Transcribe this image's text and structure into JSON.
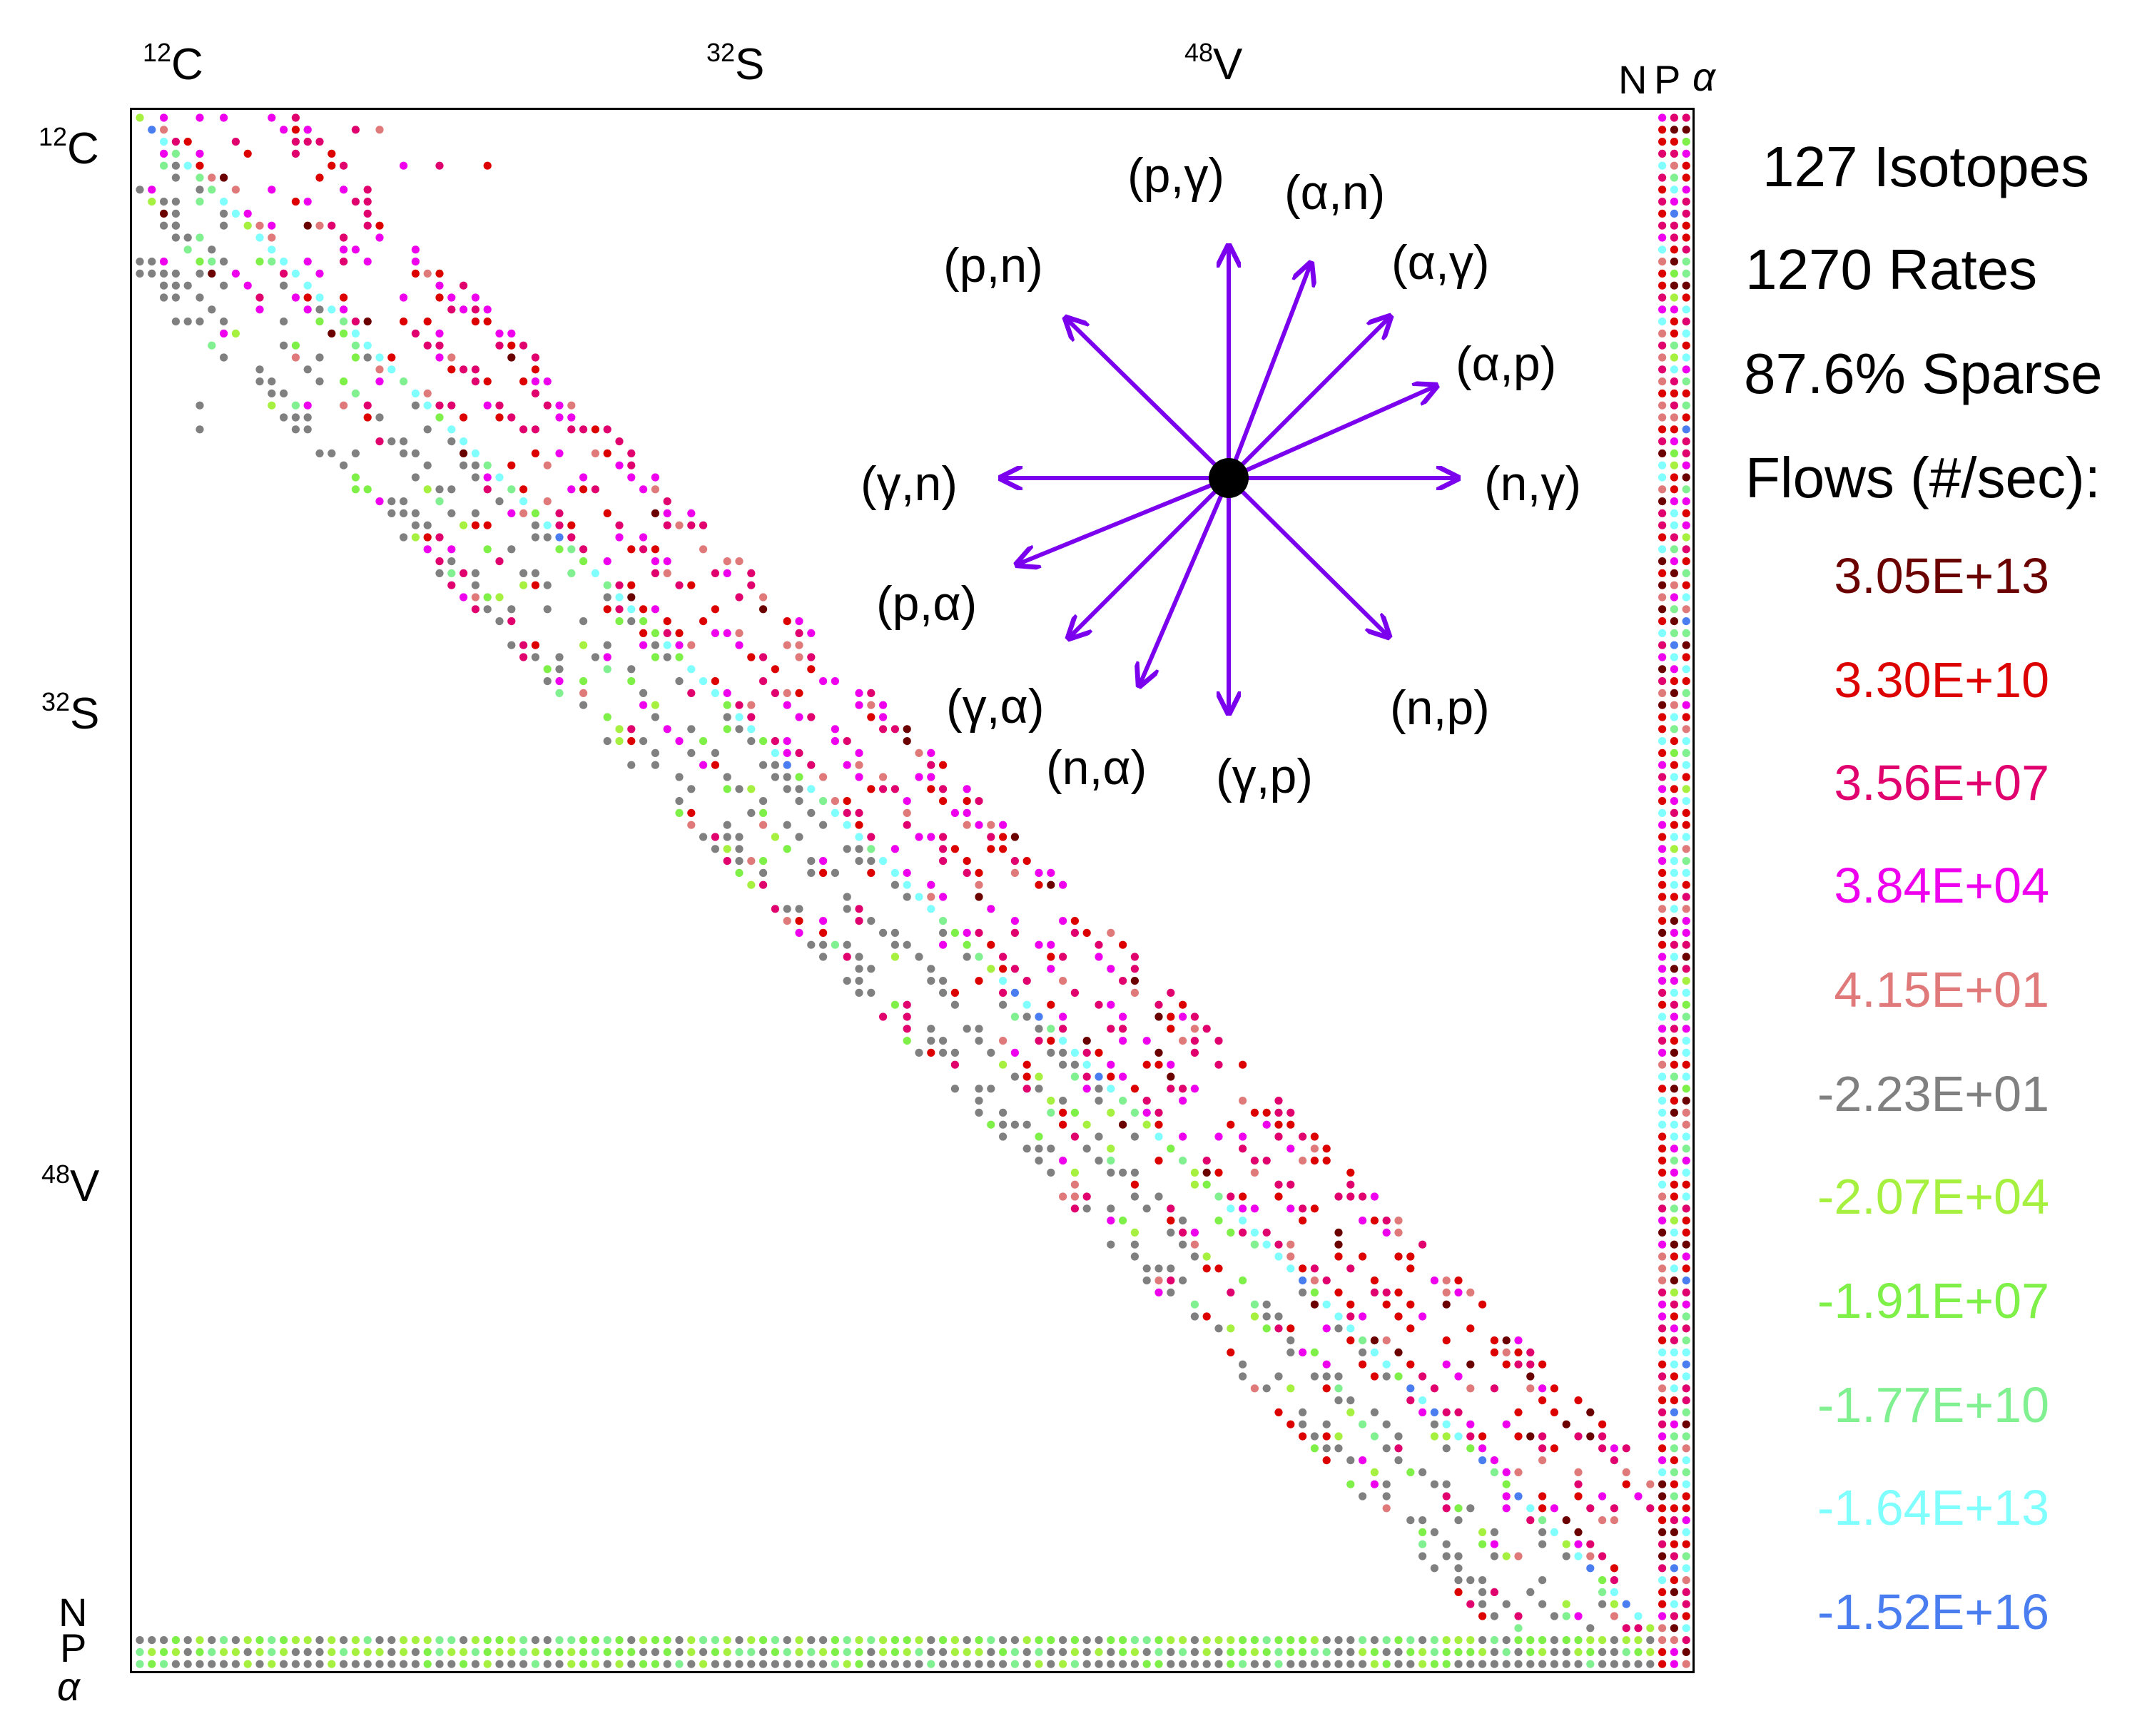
{
  "axis": {
    "top": [
      {
        "mass": "12",
        "symbol": "C"
      },
      {
        "mass": "32",
        "symbol": "S"
      },
      {
        "mass": "48",
        "symbol": "V"
      }
    ],
    "left": [
      {
        "mass": "12",
        "symbol": "C"
      },
      {
        "mass": "32",
        "symbol": "S"
      },
      {
        "mass": "48",
        "symbol": "V"
      }
    ],
    "top_extra": [
      "N",
      "P",
      "α"
    ],
    "left_extra": [
      "N",
      "P",
      "α"
    ]
  },
  "stats": {
    "isotopes": "127 Isotopes",
    "rates": "1270 Rates",
    "sparse": "87.6% Sparse",
    "flows_title": "Flows (#/sec):"
  },
  "legend": [
    {
      "label": "3.05E+13",
      "color": "#6b0000"
    },
    {
      "label": "3.30E+10",
      "color": "#dd0000"
    },
    {
      "label": "3.56E+07",
      "color": "#e0006e"
    },
    {
      "label": "3.84E+04",
      "color": "#ee00ee"
    },
    {
      "label": "4.15E+01",
      "color": "#e07a7a"
    },
    {
      "label": "-2.23E+01",
      "color": "#808080"
    },
    {
      "label": "-2.07E+04",
      "color": "#a6f040"
    },
    {
      "label": "-1.91E+07",
      "color": "#7ef048"
    },
    {
      "label": "-1.77E+10",
      "color": "#80f090"
    },
    {
      "label": "-1.64E+13",
      "color": "#80ffff"
    },
    {
      "label": "-1.52E+16",
      "color": "#4a7ef0"
    }
  ],
  "reactions": [
    {
      "label": "(p,γ)",
      "direction": "up"
    },
    {
      "label": "(α,n)",
      "direction": "up-right-steep"
    },
    {
      "label": "(α,γ)",
      "direction": "up-right"
    },
    {
      "label": "(α,p)",
      "direction": "right-up"
    },
    {
      "label": "(n,γ)",
      "direction": "right"
    },
    {
      "label": "(n,p)",
      "direction": "down-right"
    },
    {
      "label": "(γ,p)",
      "direction": "down"
    },
    {
      "label": "(n,α)",
      "direction": "down-left-steep"
    },
    {
      "label": "(γ,α)",
      "direction": "down-left"
    },
    {
      "label": "(p,α)",
      "direction": "left-down"
    },
    {
      "label": "(γ,n)",
      "direction": "left"
    },
    {
      "label": "(p,n)",
      "direction": "up-left"
    }
  ],
  "colors": {
    "arrow": "#7a00ee",
    "center_dot": "#000000",
    "frame": "#000000"
  }
}
